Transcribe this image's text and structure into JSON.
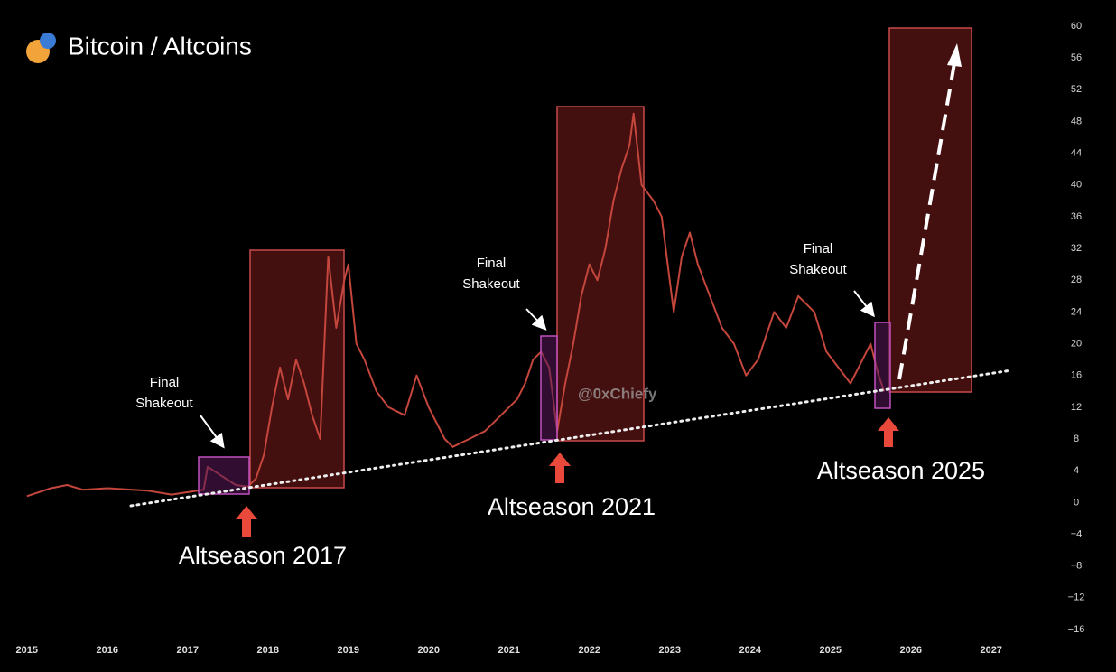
{
  "chart_data": {
    "type": "line",
    "title": "Bitcoin / Altcoins",
    "watermark": "@0xChiefy",
    "annotations": [
      "Final",
      "Shakeout",
      "Final",
      "Shakeout",
      "Final",
      "Shakeout",
      "Altseason 2017",
      "Altseason 2021",
      "Altseason 2025"
    ],
    "x": [
      2015.0,
      2015.3,
      2015.5,
      2015.7,
      2016.0,
      2016.5,
      2016.8,
      2017.0,
      2017.2,
      2017.25,
      2017.4,
      2017.6,
      2017.75,
      2017.85,
      2017.95,
      2018.05,
      2018.15,
      2018.25,
      2018.35,
      2018.45,
      2018.55,
      2018.65,
      2018.75,
      2018.85,
      2018.95,
      2019.0,
      2019.1,
      2019.2,
      2019.35,
      2019.5,
      2019.7,
      2019.85,
      2020.0,
      2020.1,
      2020.2,
      2020.3,
      2020.5,
      2020.7,
      2020.9,
      2021.1,
      2021.2,
      2021.3,
      2021.4,
      2021.5,
      2021.6,
      2021.7,
      2021.8,
      2021.9,
      2022.0,
      2022.1,
      2022.2,
      2022.3,
      2022.4,
      2022.5,
      2022.55,
      2022.65,
      2022.8,
      2022.9,
      2023.0,
      2023.05,
      2023.15,
      2023.25,
      2023.35,
      2023.5,
      2023.65,
      2023.8,
      2023.95,
      2024.1,
      2024.3,
      2024.45,
      2024.6,
      2024.8,
      2024.95,
      2025.1,
      2025.25,
      2025.4,
      2025.5,
      2025.6,
      2025.67
    ],
    "series": [
      {
        "color": "#c4463c",
        "values": [
          0.8,
          1.8,
          2.2,
          1.6,
          1.8,
          1.5,
          1.0,
          1.3,
          1.6,
          4.5,
          3.5,
          2.2,
          2.0,
          3.0,
          6,
          12,
          17,
          13,
          18,
          15,
          11,
          8,
          31,
          22,
          28,
          30,
          20,
          18,
          14,
          12,
          11,
          16,
          12,
          10,
          8,
          7,
          8,
          9,
          11,
          13,
          15,
          18,
          19,
          17,
          9,
          15,
          20,
          26,
          30,
          28,
          32,
          38,
          42,
          45,
          49,
          40,
          38,
          36,
          28,
          24,
          31,
          34,
          30,
          26,
          22,
          20,
          16,
          18,
          24,
          22,
          26,
          24,
          19,
          17,
          15,
          18,
          20,
          16,
          14
        ]
      }
    ],
    "xlim": [
      2014.8,
      2027.7
    ],
    "xticks": [
      2015,
      2016,
      2017,
      2018,
      2019,
      2020,
      2021,
      2022,
      2023,
      2024,
      2025,
      2026,
      2027
    ],
    "ylim": [
      -16,
      60
    ],
    "yticks": [
      {
        "value": -16,
        "label": "−16"
      },
      {
        "value": -12,
        "label": "−12"
      },
      {
        "value": -8,
        "label": "−8"
      },
      {
        "value": -4,
        "label": "−4"
      },
      0,
      4,
      8,
      12,
      16,
      20,
      24,
      28,
      32,
      36,
      40,
      44,
      48,
      52,
      56,
      60
    ]
  }
}
